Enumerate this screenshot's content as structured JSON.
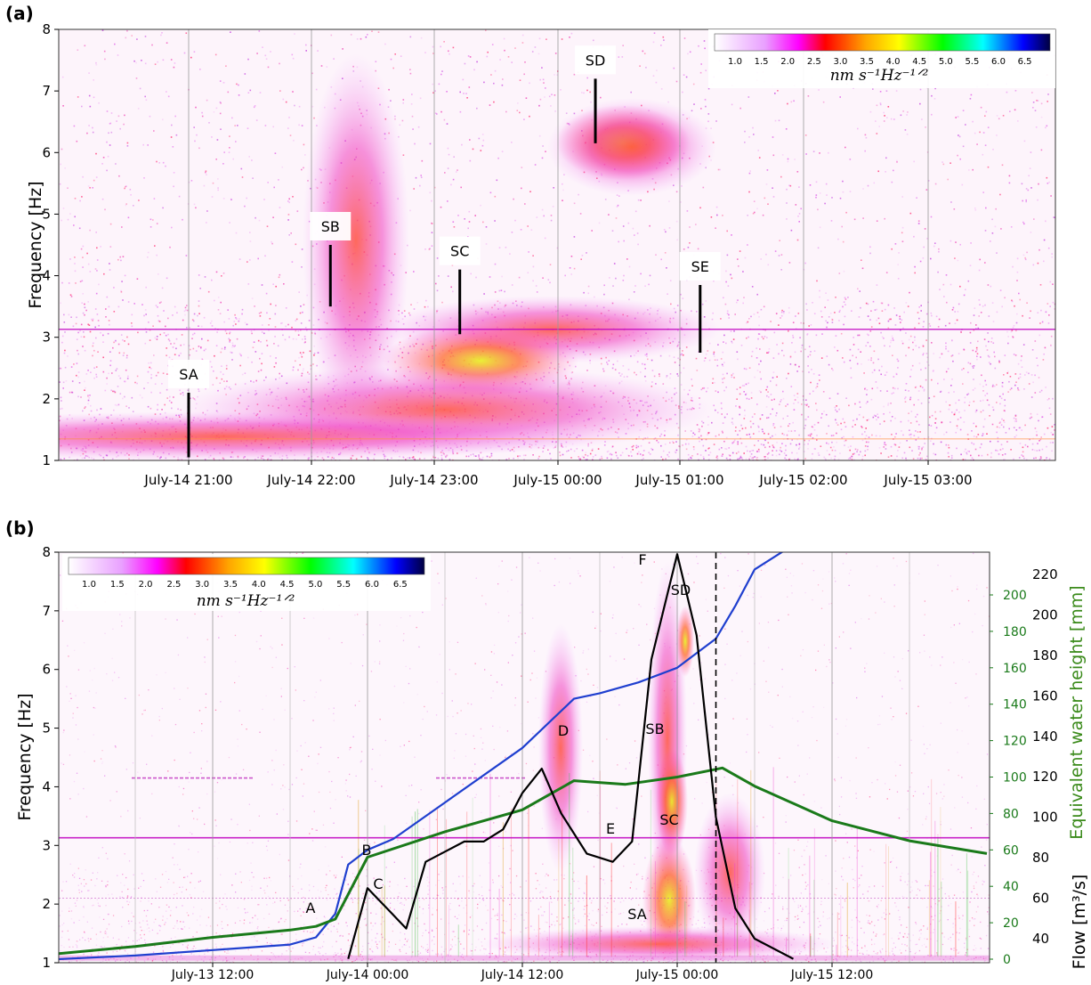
{
  "chart_data": [
    {
      "panel": "(a)",
      "type": "heatmap",
      "ylabel": "Frequency [Hz]",
      "ylim": [
        1,
        8
      ],
      "yticks": [
        "1",
        "2",
        "3",
        "4",
        "5",
        "6",
        "7",
        "8"
      ],
      "xticks": [
        "July-14 21:00",
        "July-14 22:00",
        "July-14 23:00",
        "July-15 00:00",
        "July-15 01:00",
        "July-15 02:00",
        "July-15 03:00"
      ],
      "colorbar": {
        "ticks": [
          "1.0",
          "1.5",
          "2.0",
          "2.5",
          "3.0",
          "3.5",
          "4.0",
          "4.5",
          "5.0",
          "5.5",
          "6.0",
          "6.5"
        ],
        "unit": "nm s⁻¹Hz⁻¹ᐟ²",
        "colors": [
          "#ffffff",
          "#e9a0ff",
          "#ff00ff",
          "#ff0000",
          "#ffa500",
          "#ffff00",
          "#00ff00",
          "#00ffff",
          "#0000ff",
          "#000040"
        ]
      },
      "annotations": [
        {
          "label": "SA",
          "x_hours": 0.0,
          "freq": [
            1.05,
            2.1
          ]
        },
        {
          "label": "SB",
          "x_hours": 1.15,
          "freq": [
            3.5,
            4.5
          ]
        },
        {
          "label": "SC",
          "x_hours": 2.2,
          "freq": [
            3.05,
            4.1
          ]
        },
        {
          "label": "SD",
          "x_hours": 3.3,
          "freq": [
            6.15,
            7.2
          ]
        },
        {
          "label": "SE",
          "x_hours": 4.15,
          "freq": [
            2.75,
            3.85
          ]
        }
      ]
    },
    {
      "panel": "(b)",
      "type": "heatmap",
      "ylabel": "Frequency [Hz]",
      "ylim": [
        1,
        8
      ],
      "yticks": [
        "1",
        "2",
        "3",
        "4",
        "5",
        "6",
        "7",
        "8"
      ],
      "xticks": [
        "July-13 12:00",
        "July-14 00:00",
        "July-14 12:00",
        "July-15 00:00",
        "July-15 12:00"
      ],
      "colorbar": {
        "ticks": [
          "1.0",
          "1.5",
          "2.0",
          "2.5",
          "3.0",
          "3.5",
          "4.0",
          "4.5",
          "5.0",
          "5.5",
          "6.0",
          "6.5"
        ],
        "unit": "nm s⁻¹Hz⁻¹ᐟ²"
      },
      "right_axis_1": {
        "label": "Equivalent water height [mm]",
        "ticks": [
          "0",
          "20",
          "40",
          "60",
          "80",
          "100",
          "120",
          "140",
          "160",
          "180",
          "200"
        ],
        "color": "#1a7a1a"
      },
      "right_axis_2": {
        "label": "Flow [m³/s]",
        "ticks": [
          "40",
          "60",
          "80",
          "100",
          "120",
          "140",
          "160",
          "180",
          "200",
          "220"
        ],
        "color": "#000000"
      },
      "series": [
        {
          "color": "#1f3fcf",
          "axis": "Equivalent water height [mm]",
          "x_hours_from_Jul13_00": [
            0,
            6,
            12,
            18,
            20,
            21.5,
            22.5,
            24,
            26,
            30,
            36,
            40,
            42,
            45,
            48,
            49.5,
            51,
            52.5,
            54,
            58
          ],
          "values": [
            0,
            2,
            5,
            8,
            12,
            25,
            52,
            60,
            66,
            86,
            116,
            143,
            146,
            152,
            160,
            168,
            176,
            194,
            214,
            232
          ]
        },
        {
          "color": "#1a7a1a",
          "axis": "Equivalent water height [mm]",
          "x_hours_from_Jul13_00": [
            0,
            6,
            12,
            18,
            20,
            21.5,
            24,
            30,
            36,
            40,
            44,
            48,
            51.5,
            54,
            60,
            66,
            72
          ],
          "values": [
            3,
            7,
            12,
            16,
            18,
            22,
            56,
            70,
            82,
            98,
            96,
            100,
            105,
            95,
            76,
            65,
            58
          ]
        },
        {
          "color": "#000000",
          "axis": "Flow [m³/s]",
          "x_hours_from_Jul13_00": [
            22.5,
            24,
            25.5,
            27,
            28.5,
            30,
            31.5,
            33,
            34.5,
            36,
            37.5,
            39,
            41,
            43,
            44.5,
            46,
            48,
            49.5,
            51,
            52.5,
            54,
            57
          ],
          "values": [
            30,
            65,
            55,
            45,
            78,
            83,
            88,
            88,
            94,
            112,
            124,
            102,
            82,
            78,
            88,
            178,
            230,
            190,
            100,
            55,
            40,
            30
          ]
        }
      ],
      "annotations": [
        "A",
        "B",
        "C",
        "D",
        "E",
        "F",
        "SA",
        "SB",
        "SC",
        "SD"
      ],
      "vline_dashed_x_hours": 51
    }
  ],
  "labels": {
    "panel_a": "(a)",
    "panel_b": "(b)",
    "ylabel": "Frequency [Hz]"
  }
}
